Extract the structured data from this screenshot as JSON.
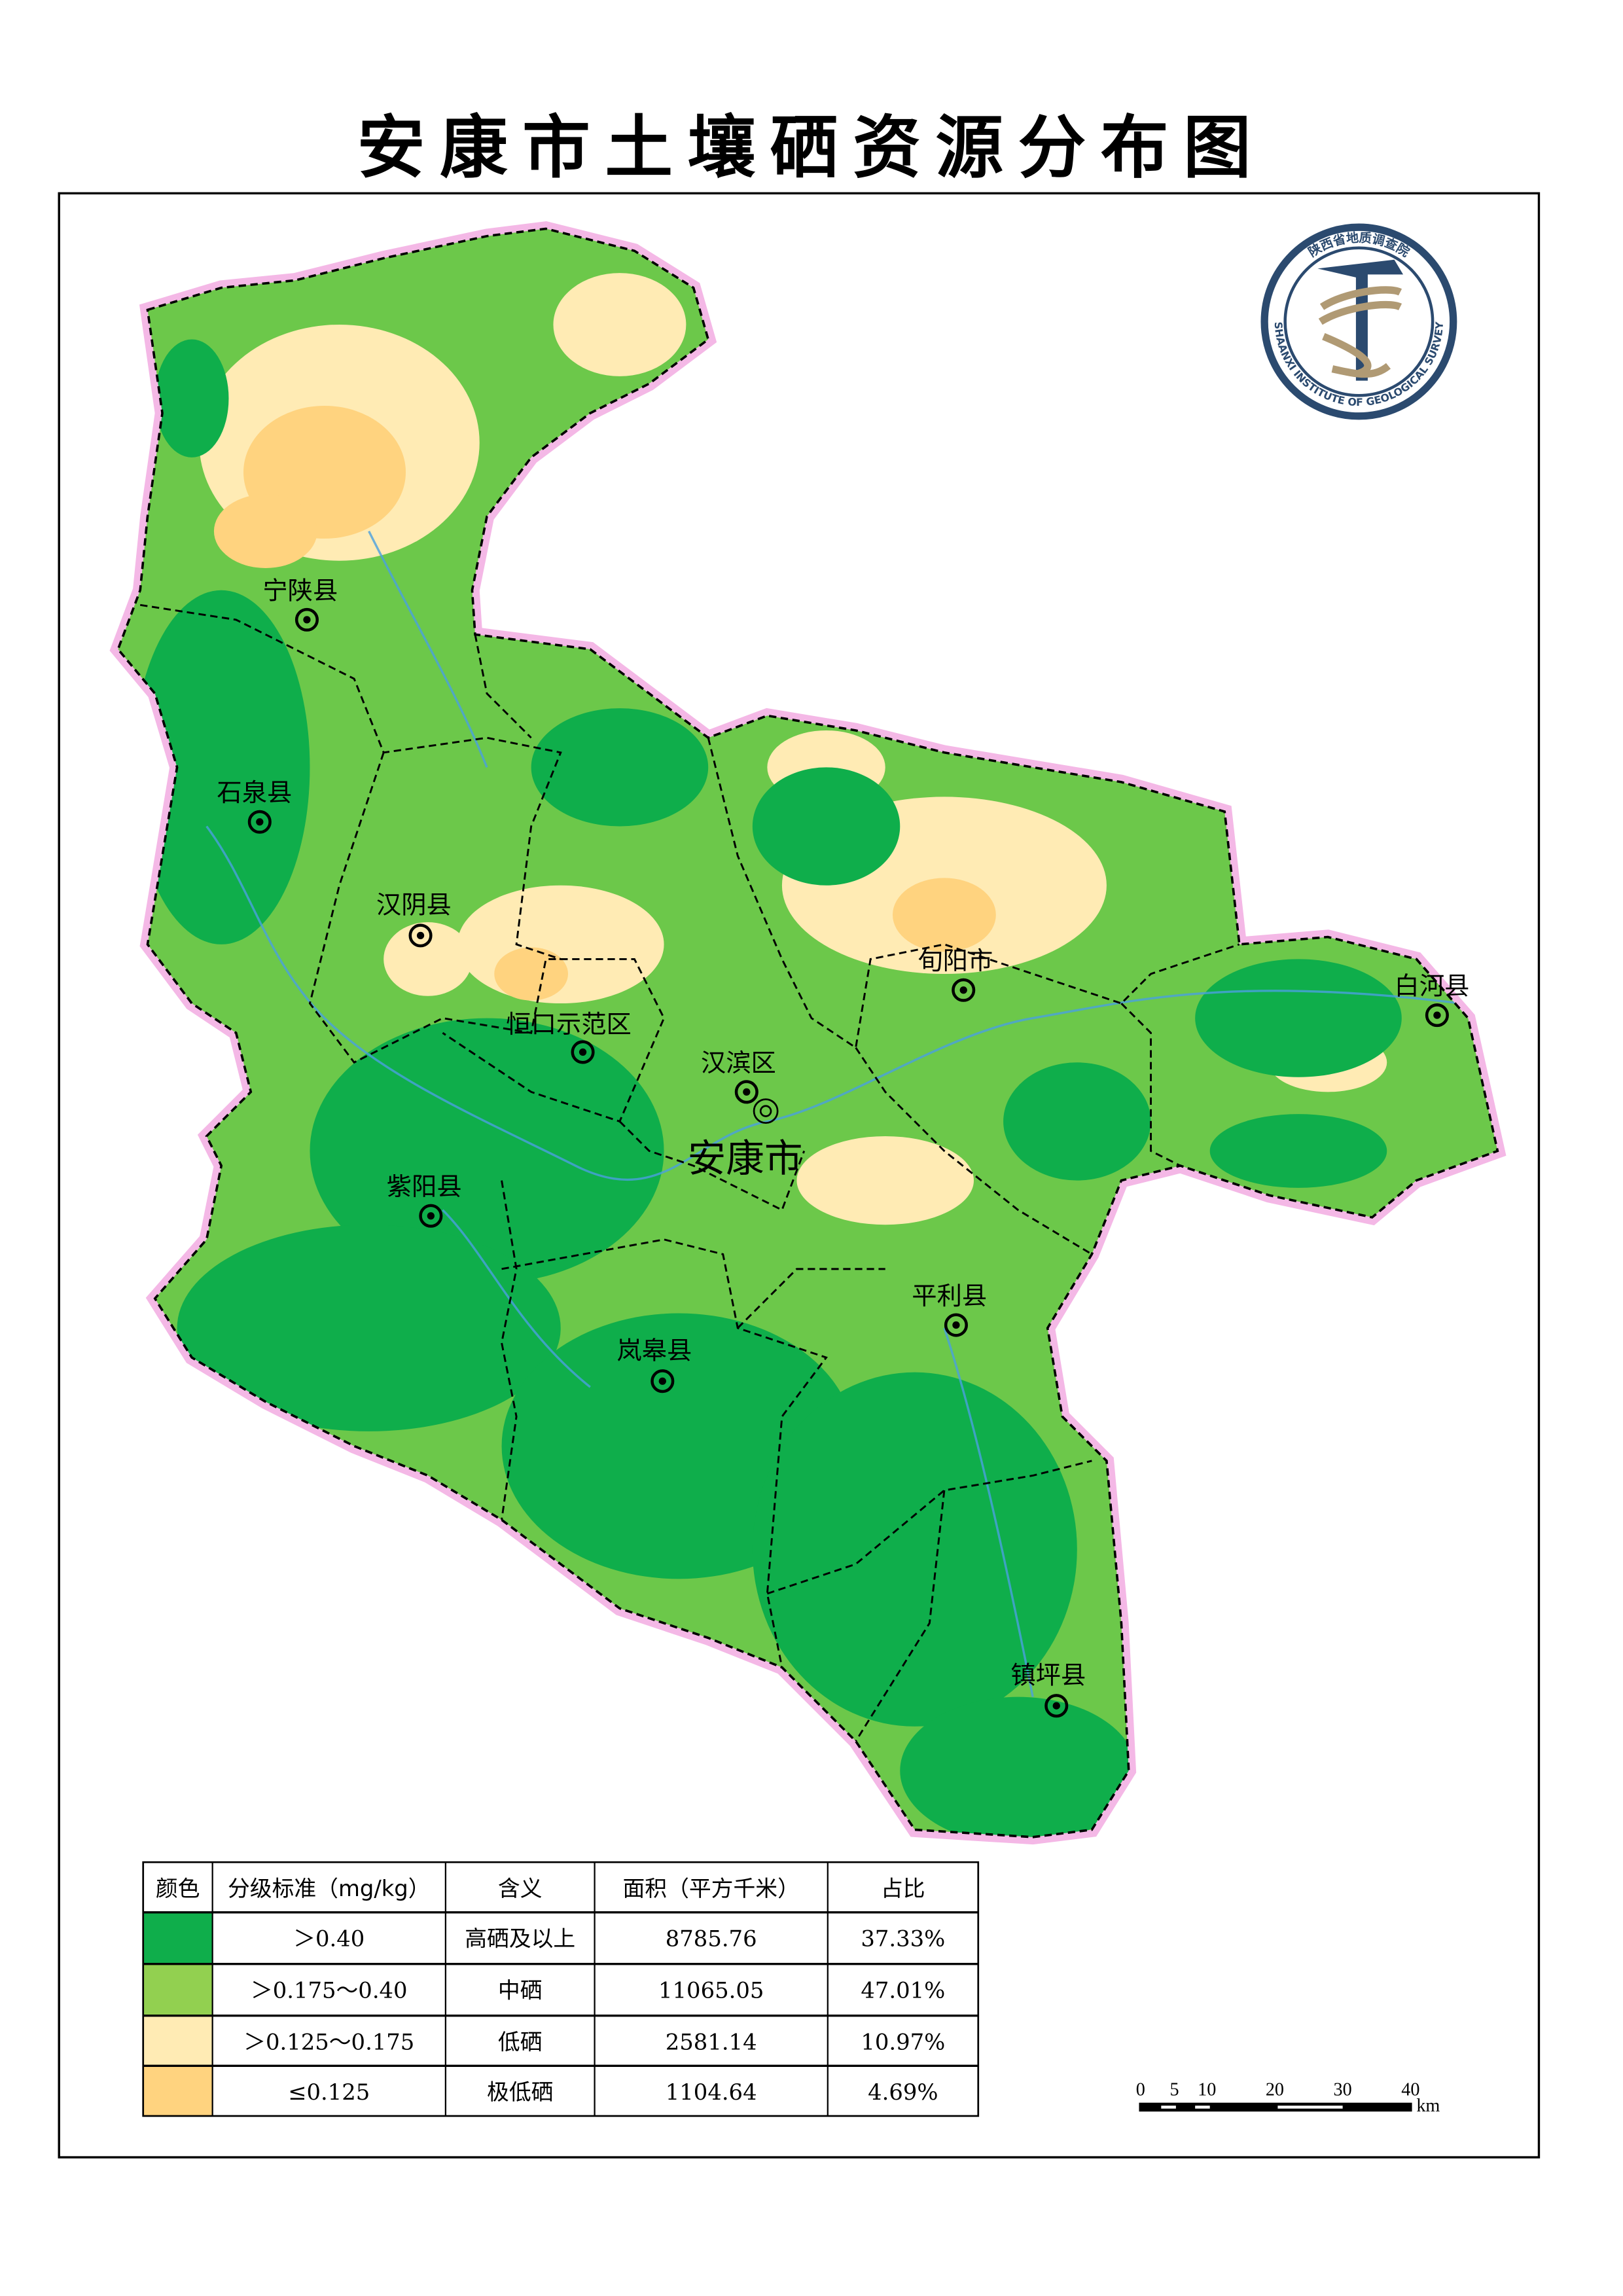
{
  "title": "安康市土壤硒资源分布图",
  "city_label": "安康市",
  "districts": [
    {
      "name": "宁陕县"
    },
    {
      "name": "石泉县"
    },
    {
      "name": "汉阴县"
    },
    {
      "name": "恒口示范区"
    },
    {
      "name": "汉滨区"
    },
    {
      "name": "旬阳市"
    },
    {
      "name": "白河县"
    },
    {
      "name": "紫阳县"
    },
    {
      "name": "平利县"
    },
    {
      "name": "岚皋县"
    },
    {
      "name": "镇坪县"
    }
  ],
  "logo": {
    "cn": "陕西省地质调查院",
    "en": "SHAANXI INSTITUTE OF GEOLOGICAL SURVEY",
    "colors": {
      "navy": "#2b4a6f",
      "gold": "#b09a74"
    }
  },
  "legend": {
    "headers": [
      "颜色",
      "分级标准（mg/kg）",
      "含义",
      "面积（平方千米）",
      "占比"
    ],
    "rows": [
      {
        "color": "#0fae4b",
        "range": "＞0.40",
        "meaning": "高硒及以上",
        "area": "8785.76",
        "share": "37.33%"
      },
      {
        "color": "#92d050",
        "range": "＞0.175～0.40",
        "meaning": "中硒",
        "area": "11065.05",
        "share": "47.01%"
      },
      {
        "color": "#ffebb4",
        "range": "＞0.125～0.175",
        "meaning": "低硒",
        "area": "2581.14",
        "share": "10.97%"
      },
      {
        "color": "#ffd37f",
        "range": "≤0.125",
        "meaning": "极低硒",
        "area": "1104.64",
        "share": "4.69%"
      }
    ]
  },
  "scale_bar": {
    "ticks": [
      "0",
      "5",
      "10",
      "20",
      "30",
      "40"
    ],
    "unit": "km"
  }
}
